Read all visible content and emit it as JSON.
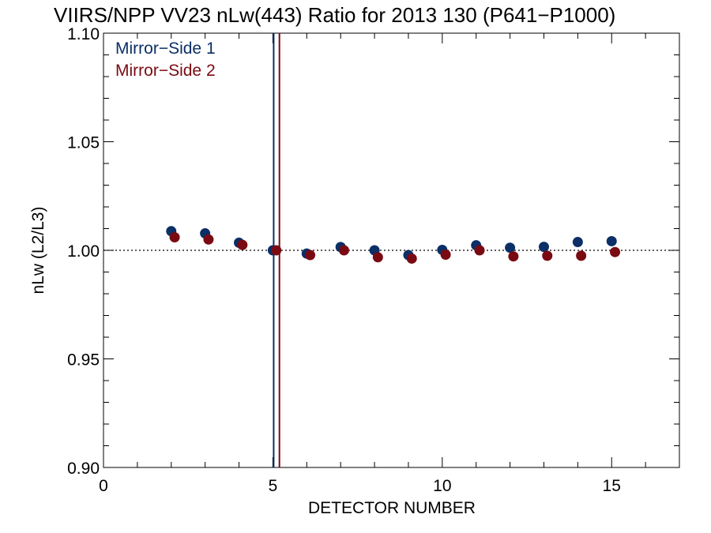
{
  "chart_data": {
    "type": "scatter",
    "title": "VIIRS/NPP VV23 nLw(443) Ratio for 2013 130 (P641−P1000)",
    "xlabel": "DETECTOR NUMBER",
    "ylabel": "nLw (L2/L3)",
    "xlim": [
      0,
      17
    ],
    "ylim": [
      0.9,
      1.1
    ],
    "xticks": [
      "0",
      "5",
      "10",
      "15"
    ],
    "yticks": [
      "0.90",
      "0.95",
      "1.00",
      "1.05",
      "1.10"
    ],
    "reference_line_y": 1.0,
    "vertical_lines": [
      {
        "x": 5.0,
        "series": "Mirror−Side 1"
      },
      {
        "x": 5.1,
        "series": "Mirror−Side 2"
      }
    ],
    "legend_position": "top-left",
    "grid": false,
    "series": [
      {
        "name": "Mirror−Side 1",
        "color": "#0b2f66",
        "x": [
          2,
          3,
          4,
          5,
          6,
          7,
          8,
          9,
          10,
          11,
          12,
          13,
          14,
          15
        ],
        "values": [
          1.0088,
          1.0078,
          1.0035,
          1.0,
          0.9985,
          1.0015,
          1.0,
          0.9978,
          1.0002,
          1.0023,
          1.0012,
          1.0016,
          1.0038,
          1.0042
        ]
      },
      {
        "name": "Mirror−Side 2",
        "color": "#7a0a12",
        "x": [
          2.1,
          3.1,
          4.1,
          5.1,
          6.1,
          7.1,
          8.1,
          9.1,
          10.1,
          11.1,
          12.1,
          13.1,
          14.1,
          15.1
        ],
        "values": [
          1.006,
          1.005,
          1.0025,
          1.0,
          0.9978,
          1.0,
          0.9968,
          0.9962,
          0.998,
          1.0,
          0.9972,
          0.9975,
          0.9975,
          0.9992
        ]
      }
    ]
  }
}
